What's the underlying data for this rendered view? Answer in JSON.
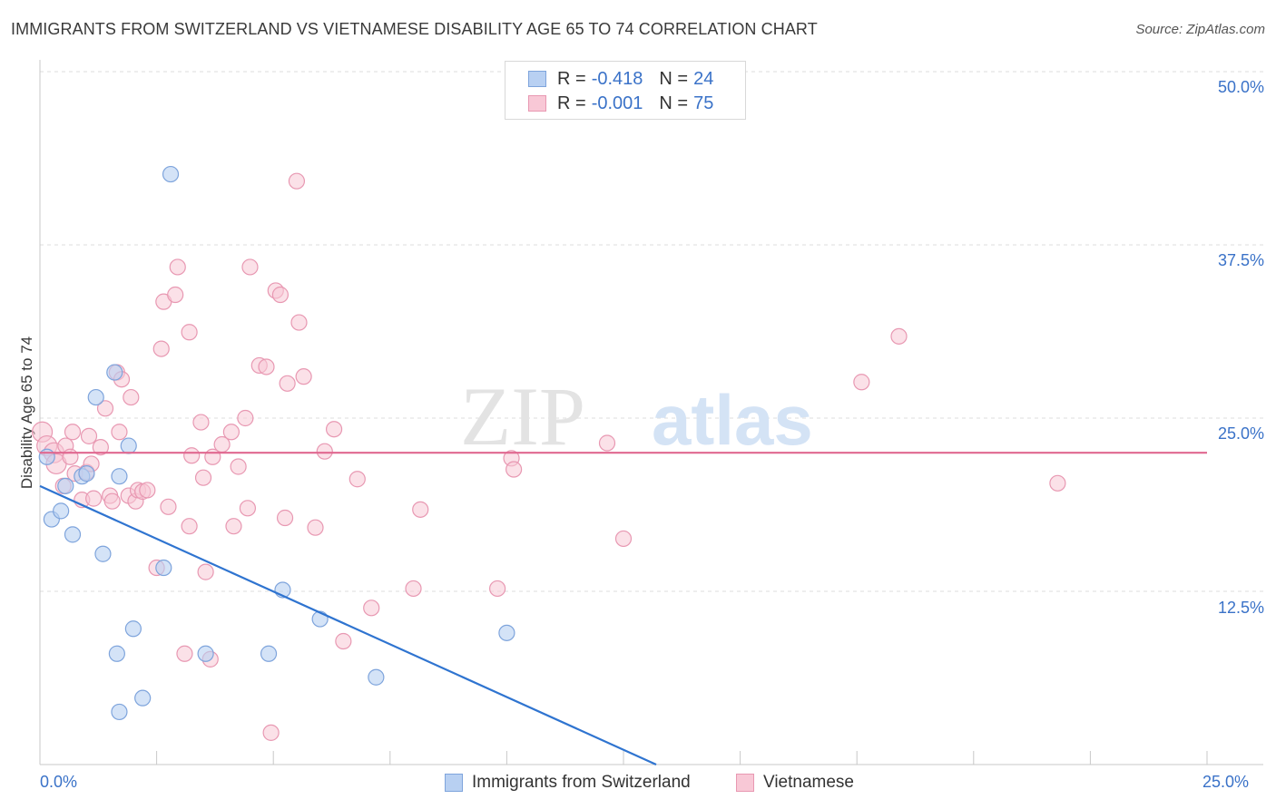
{
  "header": {
    "title": "IMMIGRANTS FROM SWITZERLAND VS VIETNAMESE DISABILITY AGE 65 TO 74 CORRELATION CHART",
    "source": "Source: ZipAtlas.com"
  },
  "watermark": {
    "zip": "ZIP",
    "atlas": "atlas"
  },
  "legend": {
    "series": [
      {
        "r_label": "R =",
        "r_value": "-0.418",
        "n_label": "N =",
        "n_value": "24",
        "fill": "#b8d0f2",
        "stroke": "#7ea4dc"
      },
      {
        "r_label": "R =",
        "r_value": "-0.001",
        "n_label": "N =",
        "n_value": "75",
        "fill": "#f8c8d6",
        "stroke": "#e898b2"
      }
    ]
  },
  "bottom_legend": [
    "Immigrants from Switzerland",
    "Vietnamese"
  ],
  "axes": {
    "x_tick_labels": [
      "0.0%",
      "25.0%"
    ],
    "y_tick_labels": [
      "12.5%",
      "25.0%",
      "37.5%",
      "50.0%"
    ]
  },
  "colors": {
    "blue_fill": "#b8d0f2",
    "blue_stroke": "#7ea4dc",
    "blue_line": "#2f74d0",
    "pink_fill": "#f8c8d6",
    "pink_stroke": "#e898b2",
    "pink_line": "#e06890",
    "tick_text": "#3a72c8",
    "grid": "#dddddd"
  },
  "chart_data": {
    "type": "scatter",
    "title": "IMMIGRANTS FROM SWITZERLAND VS VIETNAMESE DISABILITY AGE 65 TO 74 CORRELATION CHART",
    "xlabel": "",
    "ylabel": "Disability Age 65 to 74",
    "xlim": [
      0,
      25
    ],
    "ylim": [
      0,
      50
    ],
    "grid": true,
    "legend_position": "top-center",
    "series": [
      {
        "name": "Immigrants from Switzerland",
        "r": -0.418,
        "n": 24,
        "trend": {
          "x": [
            0,
            13.2
          ],
          "y": [
            20.1,
            0
          ]
        },
        "points": [
          [
            0.15,
            22.2
          ],
          [
            0.25,
            17.7
          ],
          [
            0.45,
            18.3
          ],
          [
            0.55,
            20.1
          ],
          [
            0.7,
            16.6
          ],
          [
            0.9,
            20.8
          ],
          [
            1.0,
            21.0
          ],
          [
            1.2,
            26.5
          ],
          [
            1.35,
            15.2
          ],
          [
            1.6,
            28.3
          ],
          [
            1.65,
            8.0
          ],
          [
            1.7,
            20.8
          ],
          [
            1.9,
            23.0
          ],
          [
            2.0,
            9.8
          ],
          [
            2.2,
            4.8
          ],
          [
            2.65,
            14.2
          ],
          [
            2.8,
            42.6
          ],
          [
            3.55,
            8.0
          ],
          [
            4.9,
            8.0
          ],
          [
            5.2,
            12.6
          ],
          [
            6.0,
            10.5
          ],
          [
            7.2,
            6.3
          ],
          [
            10.0,
            9.5
          ],
          [
            1.7,
            3.8
          ]
        ]
      },
      {
        "name": "Vietnamese",
        "r": -0.001,
        "n": 75,
        "trend": {
          "x": [
            0,
            25
          ],
          "y": [
            22.5,
            22.5
          ]
        },
        "points": [
          [
            0.05,
            24.0
          ],
          [
            0.15,
            23.0
          ],
          [
            0.3,
            22.5
          ],
          [
            0.35,
            21.7
          ],
          [
            0.5,
            20.1
          ],
          [
            0.55,
            23.0
          ],
          [
            0.65,
            22.2
          ],
          [
            0.7,
            24.0
          ],
          [
            0.75,
            21.0
          ],
          [
            0.9,
            19.1
          ],
          [
            1.0,
            21.1
          ],
          [
            1.05,
            23.7
          ],
          [
            1.1,
            21.7
          ],
          [
            1.15,
            19.2
          ],
          [
            1.3,
            22.9
          ],
          [
            1.4,
            25.7
          ],
          [
            1.5,
            19.4
          ],
          [
            1.55,
            19.0
          ],
          [
            1.65,
            28.3
          ],
          [
            1.7,
            24.0
          ],
          [
            1.75,
            27.8
          ],
          [
            1.9,
            19.4
          ],
          [
            1.95,
            26.5
          ],
          [
            2.05,
            19.0
          ],
          [
            2.1,
            19.8
          ],
          [
            2.2,
            19.7
          ],
          [
            2.3,
            19.8
          ],
          [
            2.5,
            14.2
          ],
          [
            2.6,
            30.0
          ],
          [
            2.65,
            33.4
          ],
          [
            2.75,
            18.6
          ],
          [
            2.9,
            33.9
          ],
          [
            2.95,
            35.9
          ],
          [
            3.1,
            8.0
          ],
          [
            3.2,
            31.2
          ],
          [
            3.2,
            17.2
          ],
          [
            3.25,
            22.3
          ],
          [
            3.45,
            24.7
          ],
          [
            3.5,
            20.7
          ],
          [
            3.55,
            13.9
          ],
          [
            3.65,
            7.6
          ],
          [
            3.7,
            22.2
          ],
          [
            3.9,
            23.1
          ],
          [
            4.1,
            24.0
          ],
          [
            4.15,
            17.2
          ],
          [
            4.25,
            21.5
          ],
          [
            4.4,
            25.0
          ],
          [
            4.45,
            18.5
          ],
          [
            4.5,
            35.9
          ],
          [
            4.7,
            28.8
          ],
          [
            4.85,
            28.7
          ],
          [
            4.95,
            2.3
          ],
          [
            5.05,
            34.2
          ],
          [
            5.15,
            33.9
          ],
          [
            5.25,
            17.8
          ],
          [
            5.3,
            27.5
          ],
          [
            5.5,
            42.1
          ],
          [
            5.55,
            31.9
          ],
          [
            5.65,
            28.0
          ],
          [
            5.9,
            17.1
          ],
          [
            6.1,
            22.6
          ],
          [
            6.3,
            24.2
          ],
          [
            6.5,
            8.9
          ],
          [
            6.8,
            20.6
          ],
          [
            7.1,
            11.3
          ],
          [
            8.0,
            12.7
          ],
          [
            8.15,
            18.4
          ],
          [
            9.8,
            12.7
          ],
          [
            10.1,
            22.1
          ],
          [
            10.15,
            21.3
          ],
          [
            12.15,
            23.2
          ],
          [
            12.5,
            16.3
          ],
          [
            17.6,
            27.6
          ],
          [
            18.4,
            30.9
          ],
          [
            21.8,
            20.3
          ]
        ]
      }
    ]
  }
}
